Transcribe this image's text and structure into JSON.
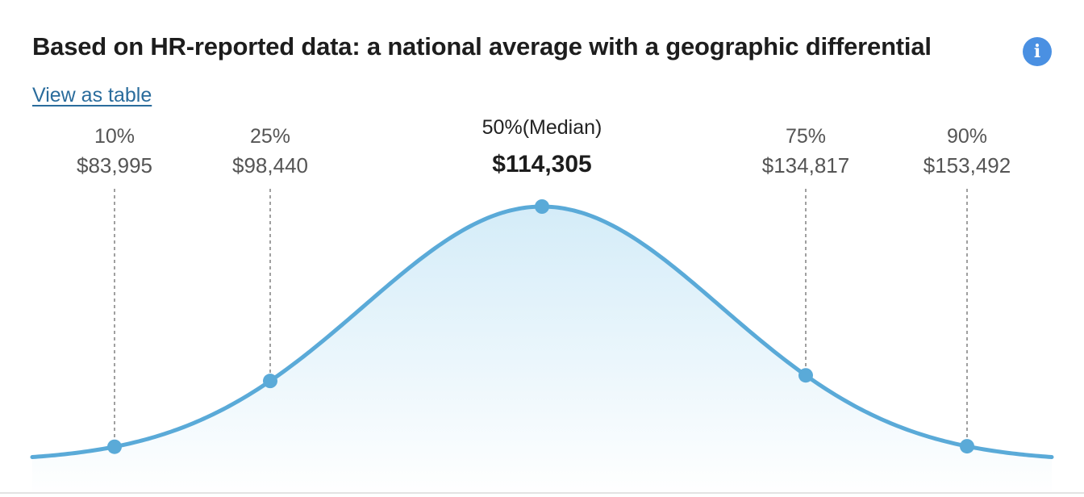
{
  "header": {
    "title": "Based on HR-reported data: a national average with a geographic differential",
    "info_icon_glyph": "i",
    "view_table_label": "View as table"
  },
  "colors": {
    "curve": "#5aaad8",
    "fill_top": "#d4ecf8",
    "fill_bottom": "#ffffff",
    "dashed": "#888888",
    "info": "#4a90e2",
    "link": "#2a6c9c"
  },
  "chart_data": {
    "type": "area",
    "title": "Based on HR-reported data: a national average with a geographic differential",
    "xlabel": "",
    "ylabel": "",
    "points": [
      {
        "percentile": "10%",
        "value": 83995,
        "value_label": "$83,995",
        "median": false
      },
      {
        "percentile": "25%",
        "value": 98440,
        "value_label": "$98,440",
        "median": false
      },
      {
        "percentile": "50%(Median)",
        "value": 114305,
        "value_label": "$114,305",
        "median": true
      },
      {
        "percentile": "75%",
        "value": 134817,
        "value_label": "$134,817",
        "median": false
      },
      {
        "percentile": "90%",
        "value": 153492,
        "value_label": "$153,492",
        "median": false
      }
    ],
    "distribution": "bell-curve",
    "grid": false,
    "legend": "none"
  }
}
